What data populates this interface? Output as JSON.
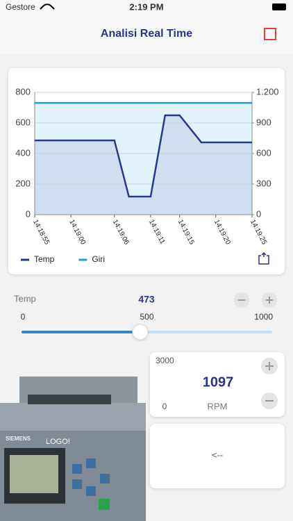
{
  "status_bar": {
    "carrier": "Gestore",
    "time": "2:19 PM"
  },
  "nav": {
    "title": "Analisi Real Time"
  },
  "chart_data": {
    "type": "line",
    "xlim": [
      "14:18:55",
      "14:19:25"
    ],
    "xticks": [
      "14:18:55",
      "14:19:00",
      "14:19:06",
      "14:19:11",
      "14:19:15",
      "14:19:20",
      "14:19:25"
    ],
    "ylim": [
      0,
      800
    ],
    "yticks": [
      0,
      200,
      400,
      600,
      800
    ],
    "y2lim": [
      0,
      1200
    ],
    "y2ticks": [
      0,
      300,
      600,
      900,
      {
        "value": 1200,
        "label": "1.200"
      }
    ],
    "grid": true,
    "legend": "bottom-left",
    "series": [
      {
        "name": "Temp",
        "color": "#243a8c",
        "fill": "#cfdff0",
        "axis": "y",
        "x": [
          "14:18:55",
          "14:19:06",
          "14:19:08",
          "14:19:11",
          "14:19:13",
          "14:19:15",
          "14:19:18",
          "14:19:25"
        ],
        "values": [
          486,
          486,
          118,
          118,
          650,
          650,
          473,
          473
        ]
      },
      {
        "name": "Giri",
        "color": "#1a9fd8",
        "fill": "#e2f4fb",
        "axis": "y2",
        "x": [
          "14:18:55",
          "14:19:25"
        ],
        "values": [
          1097,
          1097
        ]
      }
    ]
  },
  "temp_control": {
    "label": "Temp",
    "value": 473,
    "min": 0,
    "mid": 500,
    "max": 1000
  },
  "rpm_panel": {
    "max": 3000,
    "value": 1097,
    "min": 0,
    "unit": "RPM"
  },
  "button": {
    "label": "<--"
  },
  "device": {
    "brand": "SIEMENS",
    "model": "LOGO!"
  }
}
